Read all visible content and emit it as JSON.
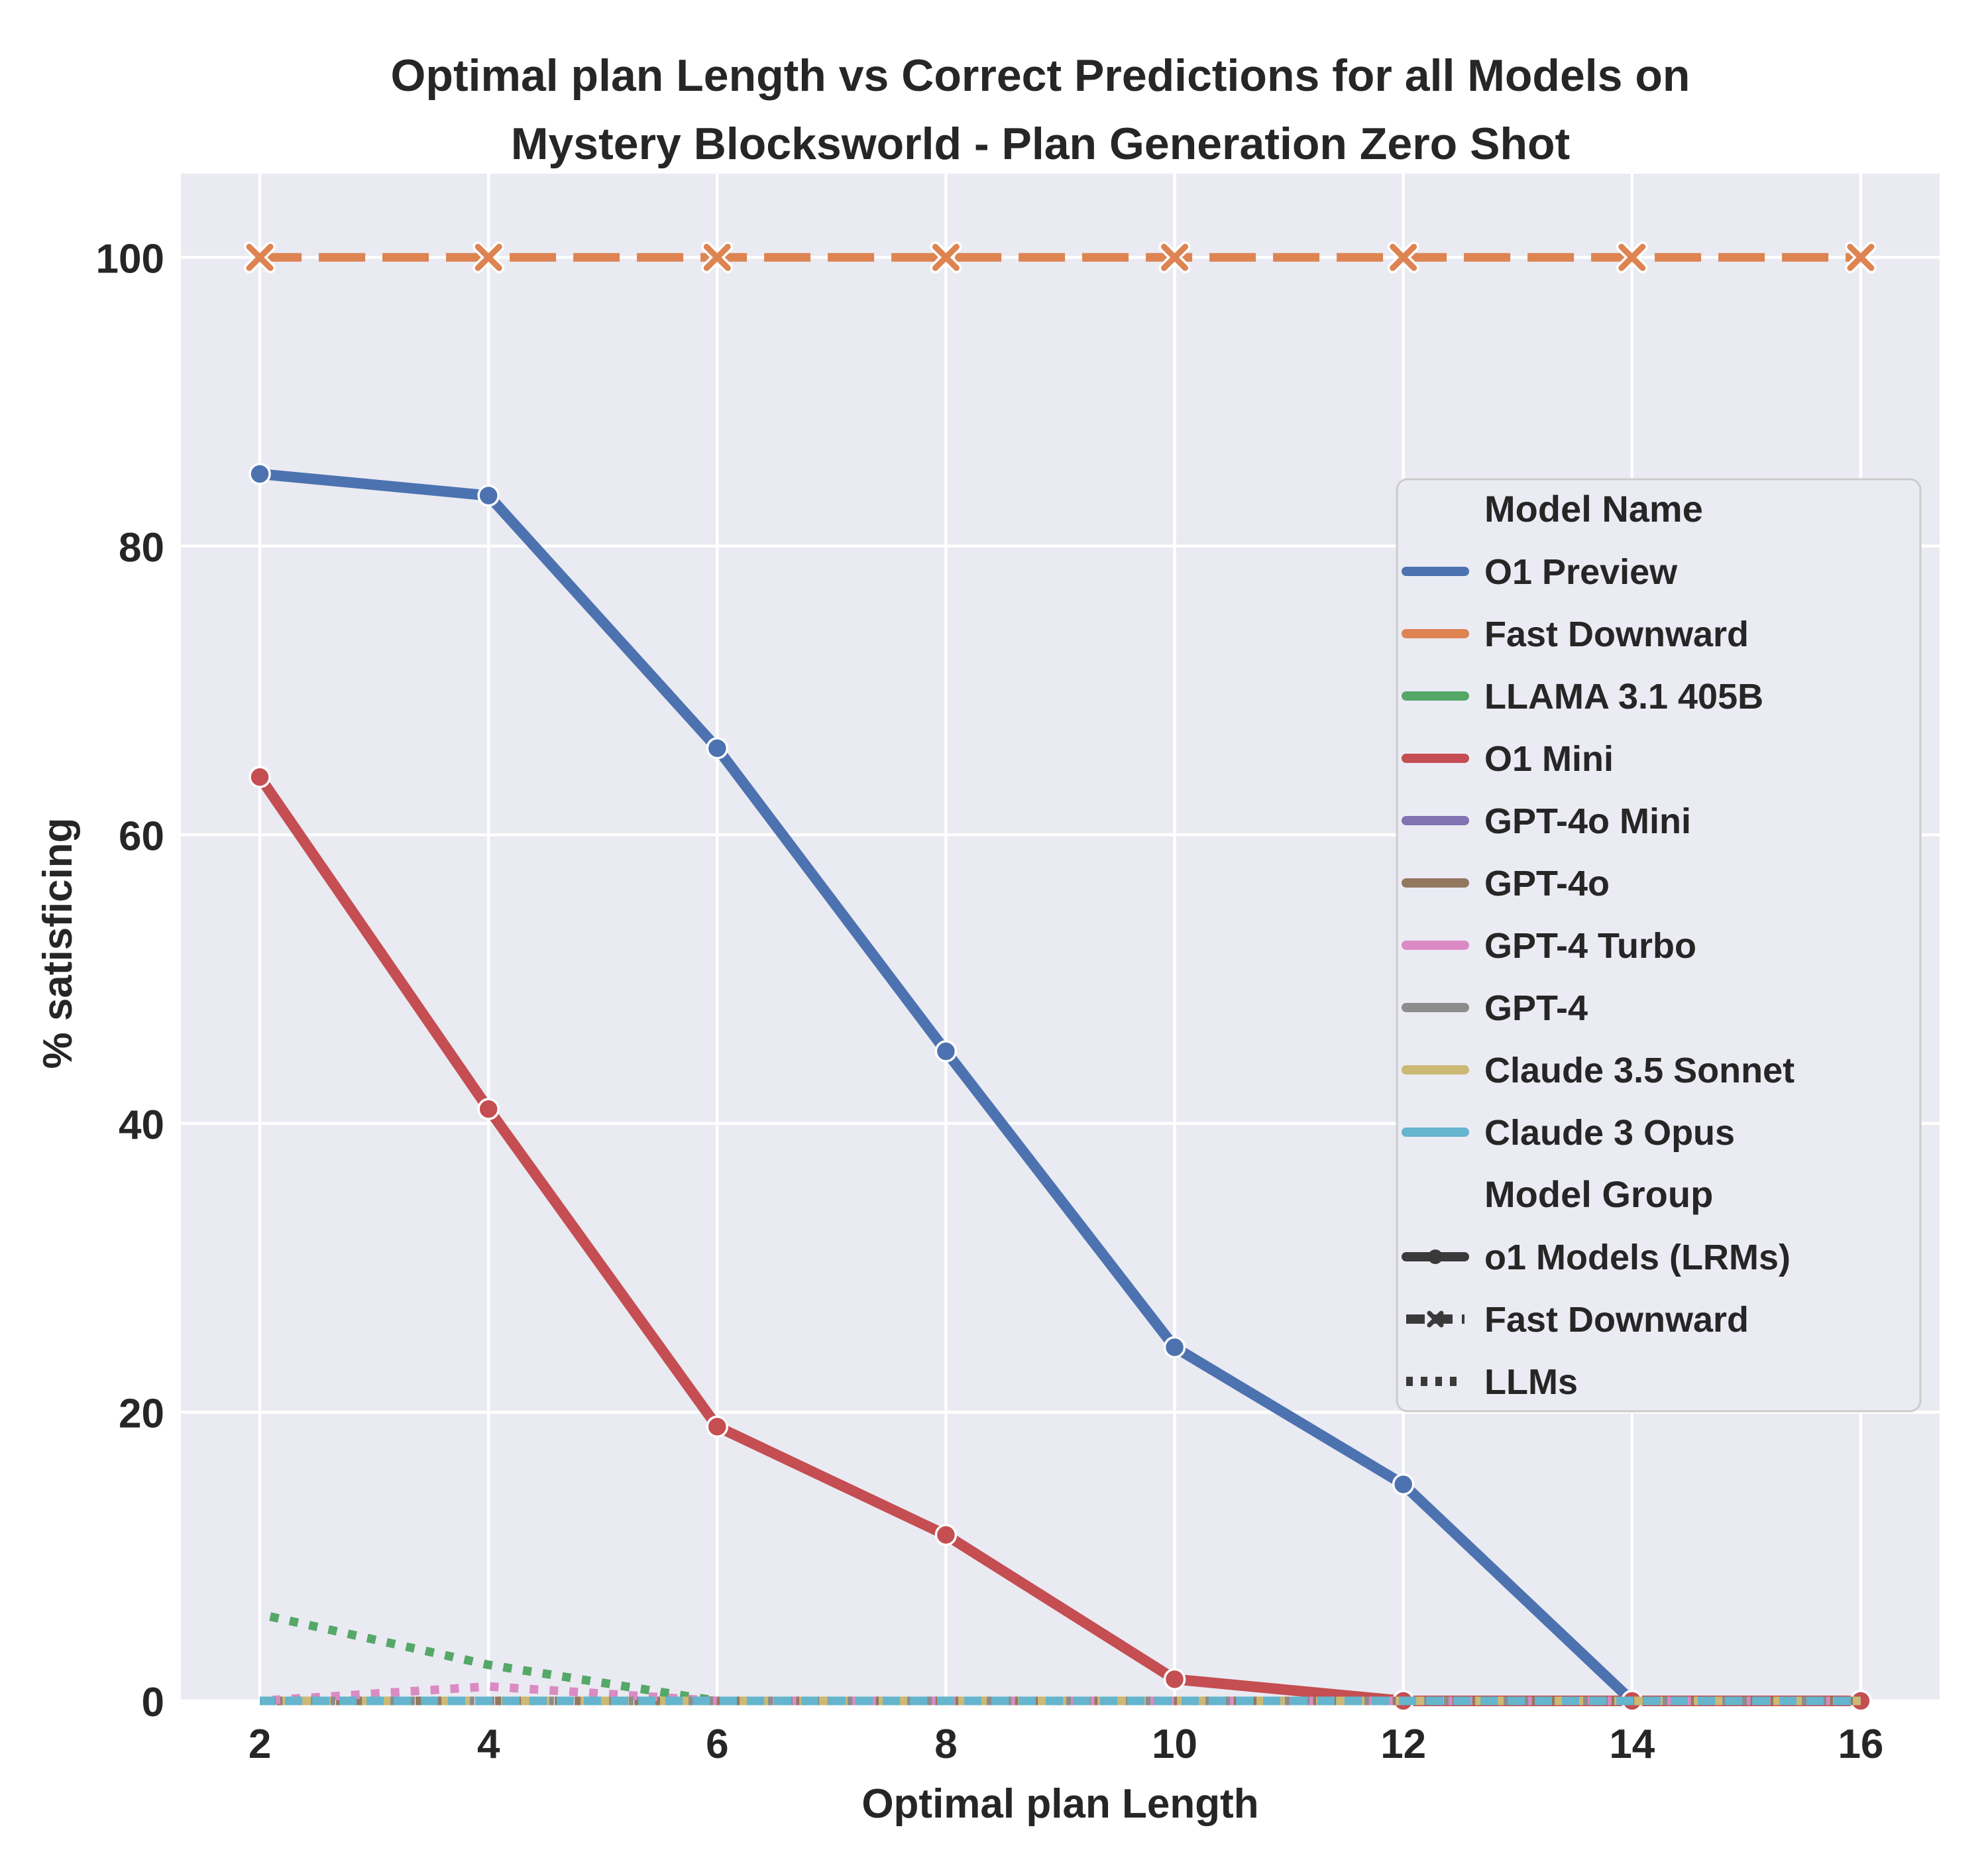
{
  "figure": {
    "title_line1": "Optimal plan Length vs Correct Predictions for all Models on",
    "title_line2": "Mystery Blocksworld - Plan Generation Zero Shot"
  },
  "chart_data": {
    "type": "line",
    "title": "Optimal plan Length vs Correct Predictions for all Models on Mystery Blocksworld - Plan Generation Zero Shot",
    "xlabel": "Optimal plan Length",
    "ylabel": "% satisficing",
    "x": [
      2,
      4,
      6,
      8,
      10,
      12,
      14,
      16
    ],
    "xticks": [
      2,
      4,
      6,
      8,
      10,
      12,
      14,
      16
    ],
    "yticks": [
      0,
      20,
      40,
      60,
      80,
      100
    ],
    "xlim": [
      1.31,
      16.69
    ],
    "ylim": [
      0,
      105.8
    ],
    "grid": true,
    "legend": {
      "name_header": "Model Name",
      "group_header": "Model Group",
      "position": "right-inside",
      "group_entries": [
        {
          "label": "o1 Models (LRMs)",
          "style": "solid-dot"
        },
        {
          "label": "Fast Downward",
          "style": "dashed-x"
        },
        {
          "label": "LLMs",
          "style": "dotted"
        }
      ]
    },
    "series": [
      {
        "name": "O1 Preview",
        "color": "#4C72B0",
        "style": "solid",
        "marker": "circle",
        "group": "o1 Models (LRMs)",
        "values": [
          85,
          83.5,
          66,
          45,
          24.5,
          15,
          0,
          0
        ]
      },
      {
        "name": "Fast Downward",
        "color": "#DD8452",
        "style": "dashed",
        "marker": "x",
        "group": "Fast Downward",
        "values": [
          100,
          100,
          100,
          100,
          100,
          100,
          100,
          100
        ]
      },
      {
        "name": "LLAMA 3.1 405B",
        "color": "#55A868",
        "style": "dotted",
        "marker": null,
        "group": "LLMs",
        "values": [
          6,
          2.5,
          0,
          0,
          0,
          0,
          0,
          0
        ]
      },
      {
        "name": "O1 Mini",
        "color": "#C44E52",
        "style": "solid",
        "marker": "circle",
        "group": "o1 Models (LRMs)",
        "values": [
          64,
          41,
          19,
          11.5,
          1.5,
          0,
          0,
          0
        ]
      },
      {
        "name": "GPT-4o Mini",
        "color": "#8172B3",
        "style": "dotted",
        "marker": null,
        "group": "LLMs",
        "values": [
          0,
          0,
          0,
          0,
          0,
          0,
          0,
          0
        ]
      },
      {
        "name": "GPT-4o",
        "color": "#937860",
        "style": "dotted",
        "marker": null,
        "group": "LLMs",
        "values": [
          0,
          0,
          0,
          0,
          0,
          0,
          0,
          0
        ]
      },
      {
        "name": "GPT-4 Turbo",
        "color": "#DA8BC3",
        "style": "dotted",
        "marker": null,
        "group": "LLMs",
        "values": [
          0,
          1,
          0,
          0,
          0,
          0,
          0,
          0
        ]
      },
      {
        "name": "GPT-4",
        "color": "#8C8C8C",
        "style": "dotted",
        "marker": null,
        "group": "LLMs",
        "values": [
          0,
          0,
          0,
          0,
          0,
          0,
          0,
          0
        ]
      },
      {
        "name": "Claude 3.5 Sonnet",
        "color": "#CCB974",
        "style": "dotted",
        "marker": null,
        "group": "LLMs",
        "values": [
          0,
          0,
          0,
          0,
          0,
          0,
          0,
          0
        ]
      },
      {
        "name": "Claude 3 Opus",
        "color": "#64B5CD",
        "style": "dashed-short",
        "marker": null,
        "group": "LLMs",
        "values": [
          0,
          0,
          0,
          0,
          0,
          0,
          0,
          0
        ]
      }
    ],
    "colors": {
      "plot_bg": "#EAEAF2",
      "grid": "#FFFFFF",
      "text": "#262626",
      "legend_line": "#3A3A3A",
      "legend_bg": "#EBEBF4",
      "legend_border": "#CCCCCC"
    }
  }
}
